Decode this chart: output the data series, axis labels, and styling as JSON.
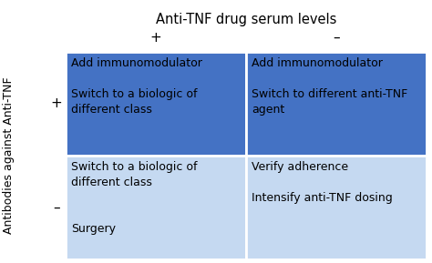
{
  "title": "Anti-TNF drug serum levels",
  "col_header_labels": [
    "+",
    "–"
  ],
  "row_header_label": "Antibodies against Anti-TNF",
  "row_labels": [
    "+",
    "–"
  ],
  "cells": [
    [
      "Add immunomodulator\n\nSwitch to a biologic of\ndifferent class",
      "Add immunomodulator\n\nSwitch to different anti-TNF\nagent"
    ],
    [
      "Switch to a biologic of\ndifferent class\n\n\nSurgery",
      "Verify adherence\n\nIntensify anti-TNF dosing"
    ]
  ],
  "cell_colors": [
    [
      "#4472C4",
      "#4472C4"
    ],
    [
      "#C5D9F1",
      "#C5D9F1"
    ]
  ],
  "cell_text_color": "#000000",
  "background_color": "#ffffff",
  "title_fontsize": 10.5,
  "header_fontsize": 11,
  "cell_fontsize": 9,
  "row_label_fontsize": 9,
  "row_pm_fontsize": 11
}
